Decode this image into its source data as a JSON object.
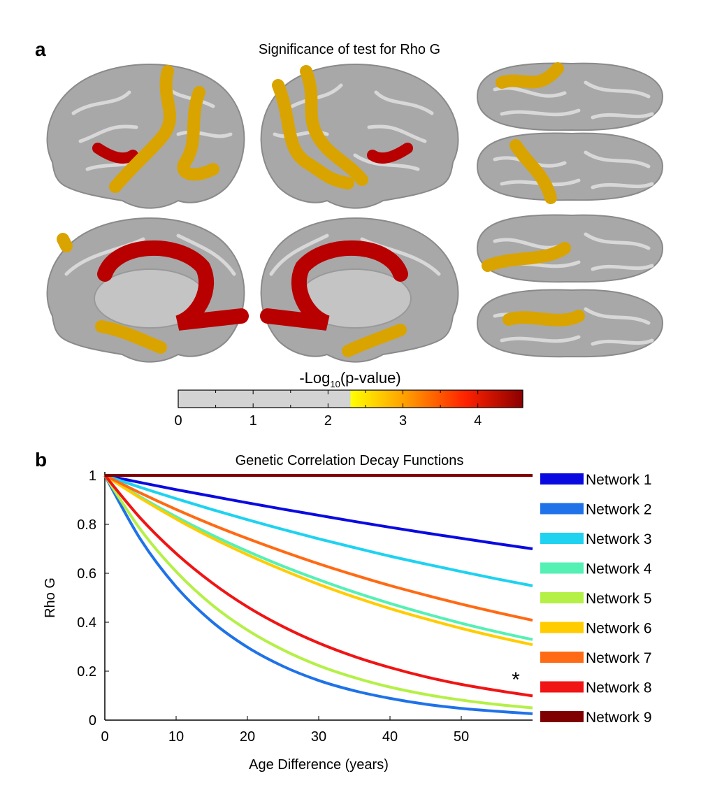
{
  "chart_data": [
    {
      "type": "colorbar",
      "panel_label": "a",
      "title": "Significance of test for Rho G",
      "label_parts": [
        "-Log",
        "10",
        "(p-value)"
      ],
      "xlim": [
        0,
        4.6
      ],
      "xticks": [
        0,
        1,
        2,
        3,
        4
      ],
      "xminorticks": [
        0.5,
        1.5,
        2.5,
        3.5
      ],
      "threshold": 2.3,
      "below_color": "#d3d3d3",
      "colors": [
        "#ffff00",
        "#ff9900",
        "#ff2200",
        "#8b0000"
      ]
    },
    {
      "type": "line",
      "panel_label": "b",
      "title": "Genetic Correlation Decay Functions",
      "x_label": "Age Difference (years)",
      "y_label": "Rho G",
      "x": [
        0,
        5,
        10,
        15,
        20,
        25,
        30,
        35,
        40,
        45,
        50,
        55,
        60
      ],
      "xlim": [
        0,
        60
      ],
      "xticks": [
        0,
        10,
        20,
        30,
        40,
        50
      ],
      "ylim": [
        0,
        1
      ],
      "yticks": [
        0,
        0.2,
        0.4,
        0.6,
        0.8,
        1
      ],
      "grid": false,
      "legend": "right",
      "annotations": [
        "*"
      ],
      "series": [
        {
          "name": "Network 1",
          "color": "#0a0ae0",
          "values": [
            1,
            0.971,
            0.942,
            0.915,
            0.888,
            0.862,
            0.837,
            0.812,
            0.788,
            0.765,
            0.743,
            0.721,
            0.7
          ]
        },
        {
          "name": "Network 2",
          "color": "#1f72e8",
          "values": [
            1,
            0.739,
            0.545,
            0.403,
            0.298,
            0.22,
            0.162,
            0.12,
            0.089,
            0.065,
            0.048,
            0.036,
            0.026
          ]
        },
        {
          "name": "Network 3",
          "color": "#1ed2f0",
          "values": [
            1,
            0.951,
            0.905,
            0.861,
            0.819,
            0.779,
            0.741,
            0.705,
            0.67,
            0.638,
            0.607,
            0.577,
            0.549
          ]
        },
        {
          "name": "Network 4",
          "color": "#55f0b4",
          "values": [
            1,
            0.912,
            0.831,
            0.757,
            0.69,
            0.629,
            0.574,
            0.523,
            0.477,
            0.435,
            0.396,
            0.361,
            0.329
          ]
        },
        {
          "name": "Network 5",
          "color": "#b4f046",
          "values": [
            1,
            0.779,
            0.607,
            0.472,
            0.368,
            0.287,
            0.223,
            0.174,
            0.135,
            0.105,
            0.082,
            0.064,
            0.05
          ]
        },
        {
          "name": "Network 6",
          "color": "#ffcc00",
          "values": [
            1,
            0.907,
            0.822,
            0.745,
            0.676,
            0.613,
            0.555,
            0.503,
            0.456,
            0.414,
            0.375,
            0.34,
            0.308
          ]
        },
        {
          "name": "Network 7",
          "color": "#ff6a14",
          "values": [
            1,
            0.928,
            0.861,
            0.799,
            0.742,
            0.689,
            0.639,
            0.593,
            0.55,
            0.511,
            0.474,
            0.44,
            0.408
          ]
        },
        {
          "name": "Network 8",
          "color": "#f01414",
          "values": [
            1,
            0.825,
            0.681,
            0.562,
            0.463,
            0.382,
            0.315,
            0.26,
            0.215,
            0.177,
            0.146,
            0.121,
            0.099
          ]
        },
        {
          "name": "Network 9",
          "color": "#800000",
          "values": [
            1,
            1,
            1,
            1,
            1,
            1,
            1,
            1,
            1,
            1,
            1,
            1,
            1
          ]
        }
      ]
    }
  ]
}
